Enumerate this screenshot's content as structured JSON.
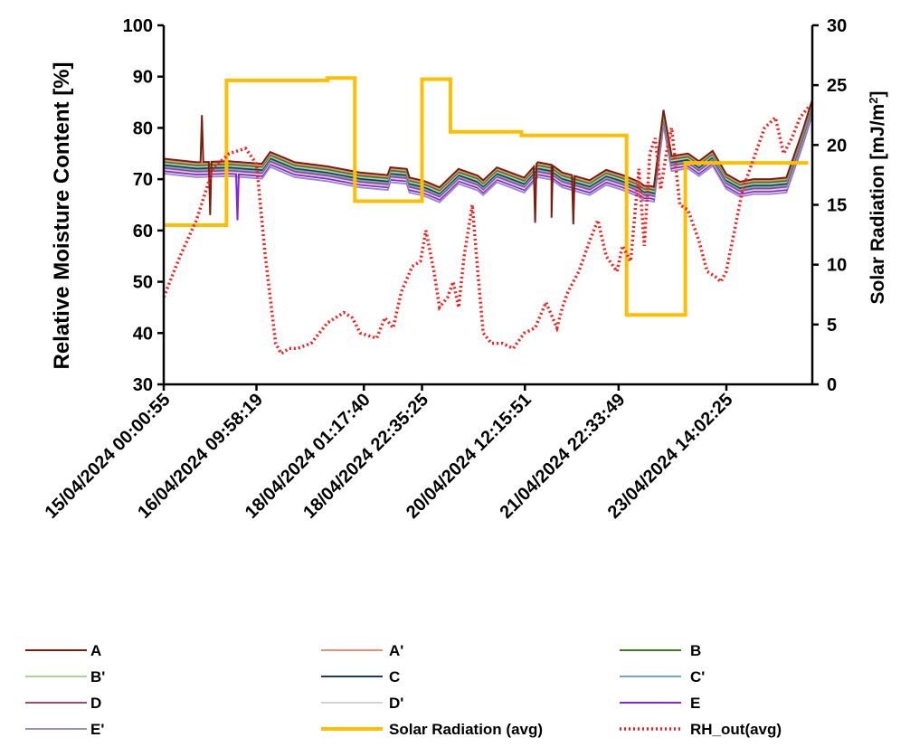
{
  "chart_data": {
    "type": "line",
    "y_left": {
      "label": "Relative Moisture Content [%]",
      "lim": [
        30,
        100
      ],
      "ticks": [
        30,
        40,
        50,
        60,
        70,
        80,
        90,
        100
      ]
    },
    "y_right": {
      "label_main": "Solar Radiation [mJ/m",
      "label_sup": "2",
      "label_end": "]",
      "lim": [
        0,
        30
      ],
      "ticks": [
        0,
        5,
        10,
        15,
        20,
        25,
        30
      ]
    },
    "x": {
      "type": "datetime",
      "start": "15/04/2024 00:00:55",
      "end": "24/04/2024 21:30:00"
    },
    "x_tick_labels": [
      {
        "at": "15/04/2024 00:00:55",
        "label": "15/04/2024  00:00:55"
      },
      {
        "at": "16/04/2024 09:58:19",
        "label": "16/04/2024  09:58:19"
      },
      {
        "at": "18/04/2024 01:17:40",
        "label": "18/04/2024  01:17:40"
      },
      {
        "at": "18/04/2024 22:35:25",
        "label": "18/04/2024  22:35:25"
      },
      {
        "at": "20/04/2024 12:15:51",
        "label": "20/04/2024  12:15:51"
      },
      {
        "at": "21/04/2024 22:33:49",
        "label": "21/04/2024  22:33:49"
      },
      {
        "at": "23/04/2024 14:02:25",
        "label": "23/04/2024  14:02:25"
      }
    ],
    "sensor_base": {
      "x": [
        "15/04/2024 00:00",
        "15/04/2024 12:00",
        "16/04/2024 00:00",
        "16/04/2024 12:00",
        "16/04/2024 15:00",
        "17/04/2024 00:00",
        "17/04/2024 12:00",
        "18/04/2024 00:00",
        "18/04/2024 10:00",
        "18/04/2024 11:00",
        "18/04/2024 17:00",
        "18/04/2024 18:00",
        "18/04/2024 23:00",
        "19/04/2024 01:00",
        "19/04/2024 05:00",
        "19/04/2024 12:00",
        "19/04/2024 19:00",
        "19/04/2024 21:00",
        "20/04/2024 02:00",
        "20/04/2024 12:00",
        "20/04/2024 17:00",
        "20/04/2024 22:00",
        "21/04/2024 02:00",
        "21/04/2024 12:00",
        "21/04/2024 18:00",
        "22/04/2024 00:00",
        "22/04/2024 06:00",
        "22/04/2024 08:00",
        "22/04/2024 10:00",
        "22/04/2024 11:30",
        "22/04/2024 15:00",
        "22/04/2024 18:00",
        "23/04/2024 00:00",
        "23/04/2024 04:00",
        "23/04/2024 09:00",
        "23/04/2024 14:00",
        "23/04/2024 19:00",
        "24/04/2024 00:00",
        "24/04/2024 06:00",
        "24/04/2024 12:00",
        "24/04/2024 18:00",
        "24/04/2024 21:30"
      ],
      "y": [
        72.5,
        71.8,
        72.0,
        71.5,
        73.8,
        71.8,
        71.0,
        69.8,
        69.3,
        70.8,
        70.5,
        68.8,
        68.2,
        67.8,
        66.9,
        70.5,
        69.2,
        68.3,
        70.8,
        68.8,
        71.8,
        71.3,
        69.8,
        68.3,
        70.3,
        69.3,
        68.0,
        67.2,
        67.2,
        67.0,
        82.0,
        73.0,
        73.5,
        72.0,
        74.0,
        69.5,
        68.0,
        68.5,
        68.5,
        68.8,
        78.0,
        84.0
      ]
    },
    "sensor_spikes": {
      "A": [
        {
          "x": "15/04/2024 14:00",
          "y": 82.5
        },
        {
          "x": "15/04/2024 17:00",
          "y": 63.0
        },
        {
          "x": "20/04/2024 16:00",
          "y": 61.5
        },
        {
          "x": "20/04/2024 22:00",
          "y": 62.5
        },
        {
          "x": "21/04/2024 06:00",
          "y": 61.2
        }
      ],
      "E": [
        {
          "x": "16/04/2024 03:00",
          "y": 62.0
        }
      ]
    },
    "series": [
      {
        "name": "A",
        "axis": "left",
        "color": "#7a1f10",
        "offset": 1.5
      },
      {
        "name": "A'",
        "axis": "left",
        "color": "#e8907a",
        "offset": 1.2
      },
      {
        "name": "B",
        "axis": "left",
        "color": "#3e7a2a",
        "offset": 0.9
      },
      {
        "name": "B'",
        "axis": "left",
        "color": "#a9d49a",
        "offset": 0.6
      },
      {
        "name": "C",
        "axis": "left",
        "color": "#1f3a5c",
        "offset": 0.3
      },
      {
        "name": "C'",
        "axis": "left",
        "color": "#6fa7d1",
        "offset": 0.0
      },
      {
        "name": "D",
        "axis": "left",
        "color": "#9a4a76",
        "offset": -0.3
      },
      {
        "name": "D'",
        "axis": "left",
        "color": "#d4d4d4",
        "offset": -0.6
      },
      {
        "name": "E",
        "axis": "left",
        "color": "#8a1fe8",
        "offset": -0.9
      },
      {
        "name": "E'",
        "axis": "left",
        "color": "#9a8fc4",
        "offset": -1.4
      },
      {
        "name": "Solar Radiation (avg)",
        "axis": "right",
        "color": "#ffbf00",
        "step": true,
        "x": [
          "15/04/2024 00:00:55",
          "15/04/2024 23:00",
          "17/04/2024 12:00",
          "17/04/2024 22:00",
          "18/04/2024 22:35",
          "19/04/2024 09:00",
          "20/04/2024 11:00",
          "21/04/2024 14:30",
          "22/04/2024 01:30",
          "22/04/2024 23:00",
          "24/04/2024 20:00"
        ],
        "y": [
          13.3,
          25.4,
          25.6,
          15.3,
          25.5,
          21.1,
          20.8,
          20.8,
          5.8,
          18.5,
          18.5
        ]
      },
      {
        "name": "RH_out(avg)",
        "axis": "left",
        "color": "#ff1a1a",
        "dashed": true,
        "x": [
          "15/04/2024 00:00",
          "15/04/2024 06:00",
          "15/04/2024 12:00",
          "15/04/2024 18:00",
          "16/04/2024 00:00",
          "16/04/2024 06:00",
          "16/04/2024 10:00",
          "16/04/2024 13:00",
          "16/04/2024 17:00",
          "16/04/2024 19:00",
          "16/04/2024 22:00",
          "17/04/2024 01:00",
          "17/04/2024 06:00",
          "17/04/2024 12:00",
          "17/04/2024 18:00",
          "17/04/2024 21:00",
          "18/04/2024 00:00",
          "18/04/2024 06:00",
          "18/04/2024 09:00",
          "18/04/2024 12:00",
          "18/04/2024 15:00",
          "18/04/2024 19:00",
          "18/04/2024 22:00",
          "19/04/2024 00:00",
          "19/04/2024 03:00",
          "19/04/2024 05:00",
          "19/04/2024 08:00",
          "19/04/2024 10:00",
          "19/04/2024 12:00",
          "19/04/2024 14:00",
          "19/04/2024 17:00",
          "19/04/2024 19:00",
          "19/04/2024 21:00",
          "20/04/2024 00:00",
          "20/04/2024 04:00",
          "20/04/2024 08:00",
          "20/04/2024 12:00",
          "20/04/2024 16:00",
          "20/04/2024 20:00",
          "21/04/2024 00:00",
          "21/04/2024 02:00",
          "21/04/2024 04:00",
          "21/04/2024 08:00",
          "21/04/2024 12:00",
          "21/04/2024 15:00",
          "21/04/2024 18:00",
          "21/04/2024 22:00",
          "22/04/2024 00:00",
          "22/04/2024 03:00",
          "22/04/2024 06:00",
          "22/04/2024 08:00",
          "22/04/2024 10:00",
          "22/04/2024 12:00",
          "22/04/2024 14:00",
          "22/04/2024 16:00",
          "22/04/2024 18:00",
          "22/04/2024 21:00",
          "23/04/2024 00:00",
          "23/04/2024 04:00",
          "23/04/2024 07:00",
          "23/04/2024 10:00",
          "23/04/2024 12:00",
          "23/04/2024 14:00",
          "23/04/2024 17:00",
          "23/04/2024 20:00",
          "24/04/2024 00:00",
          "24/04/2024 04:00",
          "24/04/2024 08:00",
          "24/04/2024 11:00",
          "24/04/2024 14:00",
          "24/04/2024 17:00",
          "24/04/2024 20:00"
        ],
        "y": [
          47.0,
          55.0,
          62.0,
          72.0,
          75.0,
          76.0,
          73.0,
          56.0,
          38.0,
          36.0,
          37.0,
          37.0,
          38.0,
          42.0,
          44.0,
          43.0,
          40.0,
          39.0,
          43.0,
          41.0,
          48.0,
          53.0,
          54.0,
          60.0,
          52.0,
          45.0,
          47.0,
          50.0,
          45.0,
          55.0,
          65.0,
          52.0,
          40.0,
          38.0,
          38.0,
          37.0,
          40.0,
          41.0,
          46.0,
          41.0,
          45.0,
          48.0,
          52.0,
          58.0,
          62.0,
          55.0,
          52.0,
          57.0,
          54.0,
          72.0,
          57.0,
          75.0,
          78.0,
          68.0,
          75.0,
          80.0,
          65.0,
          64.0,
          58.0,
          52.0,
          51.0,
          50.0,
          52.0,
          60.0,
          68.0,
          74.0,
          80.0,
          82.0,
          75.0,
          78.0,
          82.0,
          84.0
        ]
      }
    ],
    "legend": {
      "placement": "bottom",
      "entries": [
        "A",
        "A'",
        "B",
        "B'",
        "C",
        "C'",
        "D",
        "D'",
        "E",
        "E'",
        "Solar Radiation (avg)",
        "RH_out(avg)"
      ]
    },
    "grid": false
  }
}
